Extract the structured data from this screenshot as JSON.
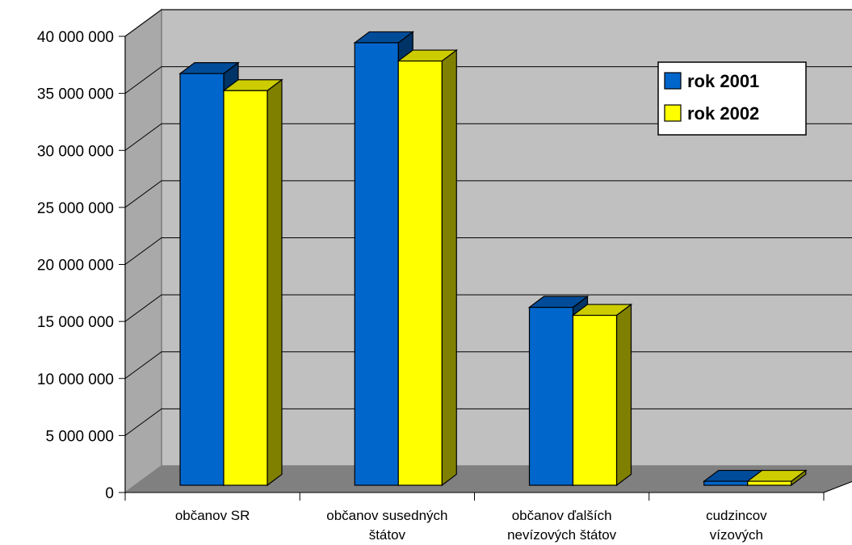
{
  "chart_data": {
    "type": "bar",
    "title": "",
    "xlabel": "",
    "ylabel": "",
    "ylim": [
      0,
      40000000
    ],
    "yticks": [
      0,
      5000000,
      10000000,
      15000000,
      20000000,
      25000000,
      30000000,
      35000000,
      40000000
    ],
    "ytick_labels": [
      "0",
      "5 000 000",
      "10 000 000",
      "15 000 000",
      "20 000 000",
      "25 000 000",
      "30 000 000",
      "35 000 000",
      "40 000 000"
    ],
    "categories": [
      [
        "občanov SR"
      ],
      [
        "občanov susedných",
        "štátov"
      ],
      [
        "občanov ďalších",
        "nevízových štátov"
      ],
      [
        "cudzincov",
        "vízových"
      ]
    ],
    "series": [
      {
        "name": "rok 2001",
        "color": "#0066CC",
        "top_color": "#004C99",
        "side_color": "#003366",
        "values": [
          36100000,
          38800000,
          15600000,
          350000
        ]
      },
      {
        "name": "rok 2002",
        "color": "#FFFF00",
        "top_color": "#CCCC00",
        "side_color": "#808000",
        "values": [
          34600000,
          37200000,
          14900000,
          350000
        ]
      }
    ],
    "grid": true,
    "legend_position": "top-right",
    "wall_color": "#C0C0C0",
    "floor_color": "#808080"
  }
}
